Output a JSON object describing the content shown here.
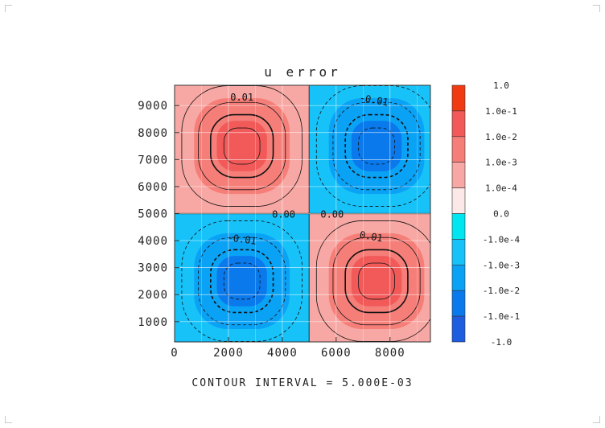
{
  "chart_data": {
    "type": "heatmap",
    "title": "u error",
    "footer": "CONTOUR INTERVAL = 5.000E-03",
    "x_ticks": [
      "0",
      "2000",
      "4000",
      "6000",
      "8000"
    ],
    "x_tick_values": [
      0,
      2000,
      4000,
      6000,
      8000
    ],
    "y_ticks": [
      "1000",
      "2000",
      "3000",
      "4000",
      "5000",
      "6000",
      "7000",
      "8000",
      "9000"
    ],
    "y_tick_values": [
      1000,
      2000,
      3000,
      4000,
      5000,
      6000,
      7000,
      8000,
      9000
    ],
    "xlim": [
      0,
      9500
    ],
    "ylim": [
      250,
      9750
    ],
    "grid": true,
    "field": {
      "description_of_pattern": "quadrupole: positive lower-left? no — positive top-left and bottom-right, negative top-right and bottom-left",
      "cells": [
        {
          "quadrant": "top-left",
          "sign": 1,
          "center": [
            2500,
            7500
          ],
          "peak": 0.015
        },
        {
          "quadrant": "top-right",
          "sign": -1,
          "center": [
            7500,
            7500
          ],
          "peak": 0.015
        },
        {
          "quadrant": "bottom-left",
          "sign": -1,
          "center": [
            2500,
            2500
          ],
          "peak": 0.015
        },
        {
          "quadrant": "bottom-right",
          "sign": 1,
          "center": [
            7500,
            2500
          ],
          "peak": 0.015
        }
      ]
    },
    "contour_labels": [
      {
        "text": "0.01",
        "x": 2500,
        "y": 9300
      },
      {
        "text": "-0.01",
        "x": 7400,
        "y": 9200
      },
      {
        "text": "0.00",
        "x": 4050,
        "y": 4970
      },
      {
        "text": "0.00",
        "x": 5850,
        "y": 4970
      },
      {
        "text": "-0.01",
        "x": 2500,
        "y": 4050
      },
      {
        "text": "0.01",
        "x": 7300,
        "y": 4150
      }
    ],
    "colorbar": {
      "labels": [
        "1.0",
        "1.0e-1",
        "1.0e-2",
        "1.0e-3",
        "1.0e-4",
        "0.0",
        "-1.0e-4",
        "-1.0e-3",
        "-1.0e-2",
        "-1.0e-1",
        "-1.0"
      ],
      "colors": [
        "#f03a12",
        "#f25a5a",
        "#f57e78",
        "#f8a8a4",
        "#fde8e8",
        "#ffffff",
        "#00e6f0",
        "#17c2f8",
        "#0aa2f5",
        "#0a79ec",
        "#1f5de0"
      ]
    }
  }
}
